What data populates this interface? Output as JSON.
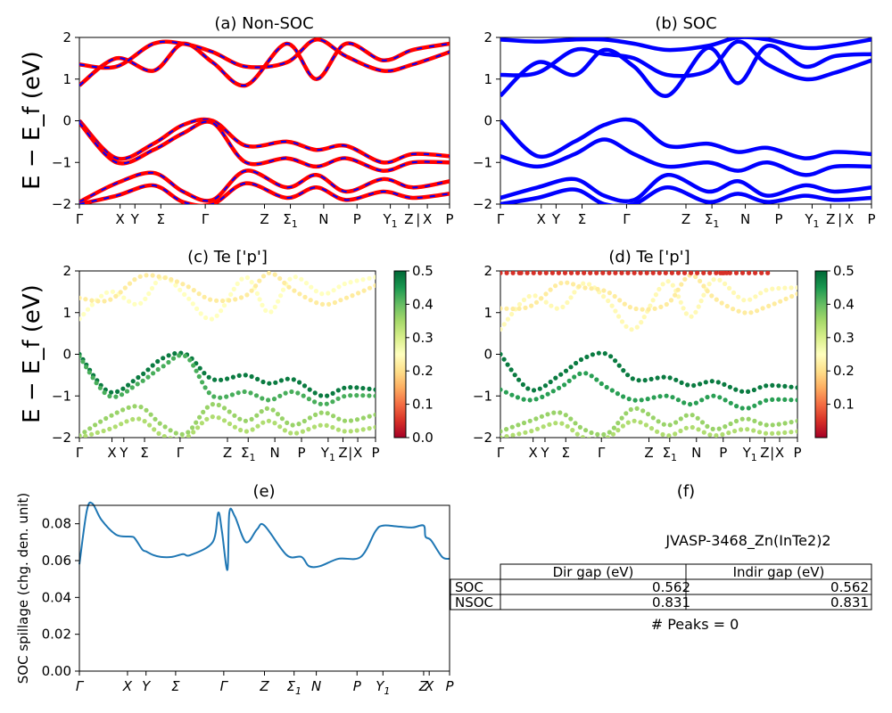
{
  "figure": {
    "ylabel_bands": "E − E_f (eV)",
    "ylabel_spillage": "SOC spillage (chg. den. unit)"
  },
  "chart_data": [
    {
      "id": "a",
      "type": "line",
      "title": "(a) Non-SOC",
      "ylabel": "E − E_f (eV)",
      "ylim": [
        -2,
        2
      ],
      "yticks": [
        "2",
        "1",
        "0",
        "−1",
        "−2"
      ],
      "kpath_labels": [
        "Γ",
        "X",
        "Y",
        "Σ",
        "Γ",
        "Z",
        "Σ1",
        "N",
        "P",
        "Y1",
        "Z",
        "|",
        "X",
        "P"
      ],
      "colors": {
        "line": "#ff0000",
        "dash": "#0000ff"
      },
      "series": [
        {
          "x": [
            0,
            0.1,
            0.2,
            0.28,
            0.36,
            0.45,
            0.56,
            0.64,
            0.72,
            0.82,
            0.9,
            1.0
          ],
          "values": [
            0.85,
            1.5,
            1.2,
            1.85,
            1.4,
            0.85,
            1.85,
            1.0,
            1.85,
            1.45,
            1.7,
            1.85
          ]
        },
        {
          "x": [
            0,
            0.1,
            0.2,
            0.28,
            0.36,
            0.45,
            0.56,
            0.64,
            0.72,
            0.82,
            0.9,
            1.0
          ],
          "values": [
            1.35,
            1.3,
            1.85,
            1.85,
            1.65,
            1.3,
            1.4,
            1.95,
            1.55,
            1.2,
            1.35,
            1.65
          ]
        },
        {
          "x": [
            0,
            0.1,
            0.2,
            0.28,
            0.36,
            0.45,
            0.56,
            0.64,
            0.72,
            0.82,
            0.9,
            1.0
          ],
          "values": [
            0.0,
            -0.9,
            -0.55,
            -0.1,
            0.0,
            -0.6,
            -0.5,
            -0.7,
            -0.6,
            -1.0,
            -0.8,
            -0.85
          ]
        },
        {
          "x": [
            0,
            0.1,
            0.2,
            0.28,
            0.36,
            0.45,
            0.56,
            0.64,
            0.72,
            0.82,
            0.9,
            1.0
          ],
          "values": [
            -0.05,
            -1.0,
            -0.7,
            -0.3,
            -0.05,
            -1.0,
            -0.9,
            -1.1,
            -0.9,
            -1.2,
            -1.0,
            -1.0
          ]
        },
        {
          "x": [
            0,
            0.1,
            0.2,
            0.28,
            0.36,
            0.45,
            0.56,
            0.64,
            0.72,
            0.82,
            0.9,
            1.0
          ],
          "values": [
            -1.95,
            -1.5,
            -1.25,
            -1.7,
            -1.9,
            -1.2,
            -1.6,
            -1.3,
            -1.7,
            -1.4,
            -1.6,
            -1.45
          ]
        },
        {
          "x": [
            0,
            0.1,
            0.2,
            0.28,
            0.36,
            0.45,
            0.56,
            0.64,
            0.72,
            0.82,
            0.9,
            1.0
          ],
          "values": [
            -2.0,
            -1.8,
            -1.55,
            -1.95,
            -2.0,
            -1.5,
            -1.85,
            -1.6,
            -1.9,
            -1.7,
            -1.85,
            -1.75
          ]
        }
      ]
    },
    {
      "id": "b",
      "type": "line",
      "title": "(b) SOC",
      "ylim": [
        -2,
        2
      ],
      "yticks": [
        "2",
        "1",
        "0",
        "−1",
        "−2"
      ],
      "kpath_labels": [
        "Γ",
        "X",
        "Y",
        "Σ",
        "Γ",
        "Z",
        "Σ1",
        "N",
        "P",
        "Y1",
        "Z",
        "|",
        "X",
        "P"
      ],
      "colors": {
        "line": "#0000ff"
      },
      "series": [
        {
          "x": [
            0,
            0.1,
            0.2,
            0.28,
            0.36,
            0.45,
            0.56,
            0.64,
            0.72,
            0.82,
            0.9,
            1.0
          ],
          "values": [
            0.6,
            1.4,
            1.1,
            1.7,
            1.3,
            0.6,
            1.75,
            0.9,
            1.8,
            1.3,
            1.55,
            1.6
          ]
        },
        {
          "x": [
            0,
            0.1,
            0.2,
            0.28,
            0.36,
            0.45,
            0.56,
            0.64,
            0.72,
            0.82,
            0.9,
            1.0
          ],
          "values": [
            1.1,
            1.15,
            1.7,
            1.6,
            1.5,
            1.1,
            1.2,
            1.9,
            1.35,
            1.0,
            1.15,
            1.45
          ]
        },
        {
          "x": [
            0,
            0.1,
            0.2,
            0.28,
            0.36,
            0.45,
            0.56,
            0.64,
            0.72,
            0.82,
            0.9,
            1.0
          ],
          "values": [
            1.95,
            1.9,
            1.95,
            1.95,
            1.85,
            1.7,
            1.8,
            2.0,
            1.95,
            1.75,
            1.8,
            1.95
          ]
        },
        {
          "x": [
            0,
            0.1,
            0.2,
            0.28,
            0.36,
            0.45,
            0.56,
            0.64,
            0.72,
            0.82,
            0.9,
            1.0
          ],
          "values": [
            0.0,
            -0.85,
            -0.5,
            -0.1,
            0.0,
            -0.6,
            -0.55,
            -0.75,
            -0.65,
            -0.9,
            -0.75,
            -0.8
          ]
        },
        {
          "x": [
            0,
            0.1,
            0.2,
            0.28,
            0.36,
            0.45,
            0.56,
            0.64,
            0.72,
            0.82,
            0.9,
            1.0
          ],
          "values": [
            -0.85,
            -1.1,
            -0.8,
            -0.45,
            -0.8,
            -1.1,
            -1.0,
            -1.2,
            -1.0,
            -1.3,
            -1.1,
            -1.1
          ]
        },
        {
          "x": [
            0,
            0.1,
            0.2,
            0.28,
            0.36,
            0.45,
            0.56,
            0.64,
            0.72,
            0.82,
            0.9,
            1.0
          ],
          "values": [
            -1.85,
            -1.6,
            -1.4,
            -1.8,
            -1.9,
            -1.3,
            -1.7,
            -1.45,
            -1.8,
            -1.55,
            -1.7,
            -1.6
          ]
        },
        {
          "x": [
            0,
            0.1,
            0.2,
            0.28,
            0.36,
            0.45,
            0.56,
            0.64,
            0.72,
            0.82,
            0.9,
            1.0
          ],
          "values": [
            -2.0,
            -1.85,
            -1.65,
            -2.0,
            -2.0,
            -1.6,
            -1.95,
            -1.75,
            -1.95,
            -1.8,
            -1.9,
            -1.85
          ]
        }
      ]
    },
    {
      "id": "c",
      "type": "scatter",
      "title": "(c)  Te ['p']",
      "ylabel": "E − E_f (eV)",
      "ylim": [
        -2,
        2
      ],
      "yticks": [
        "2",
        "1",
        "0",
        "−1",
        "−2"
      ],
      "kpath_labels": [
        "Γ",
        "X",
        "Y",
        "Σ",
        "Γ",
        "Z",
        "Σ1",
        "N",
        "P",
        "Y1",
        "Z",
        "|",
        "X",
        "P"
      ],
      "colorbar": {
        "range": [
          0.0,
          0.5
        ],
        "ticks": [
          "0.5",
          "0.4",
          "0.3",
          "0.2",
          "0.1",
          "0.0"
        ],
        "colormap": "RdYlGn"
      },
      "series": [
        {
          "weight": 0.25,
          "x": [
            0,
            0.1,
            0.2,
            0.28,
            0.36,
            0.45,
            0.56,
            0.64,
            0.72,
            0.82,
            0.9,
            1.0
          ],
          "values": [
            0.85,
            1.5,
            1.2,
            1.85,
            1.4,
            0.85,
            1.85,
            1.0,
            1.85,
            1.45,
            1.7,
            1.85
          ]
        },
        {
          "weight": 0.22,
          "x": [
            0,
            0.1,
            0.2,
            0.28,
            0.36,
            0.45,
            0.56,
            0.64,
            0.72,
            0.82,
            0.9,
            1.0
          ],
          "values": [
            1.35,
            1.3,
            1.85,
            1.85,
            1.65,
            1.3,
            1.4,
            1.95,
            1.55,
            1.2,
            1.35,
            1.65
          ]
        },
        {
          "weight": 0.48,
          "x": [
            0,
            0.1,
            0.2,
            0.28,
            0.36,
            0.45,
            0.56,
            0.64,
            0.72,
            0.82,
            0.9,
            1.0
          ],
          "values": [
            0.0,
            -0.9,
            -0.55,
            -0.1,
            0.0,
            -0.6,
            -0.5,
            -0.7,
            -0.6,
            -1.0,
            -0.8,
            -0.85
          ]
        },
        {
          "weight": 0.42,
          "x": [
            0,
            0.1,
            0.2,
            0.28,
            0.36,
            0.45,
            0.56,
            0.64,
            0.72,
            0.82,
            0.9,
            1.0
          ],
          "values": [
            -0.05,
            -1.0,
            -0.7,
            -0.3,
            -0.05,
            -1.0,
            -0.9,
            -1.1,
            -0.9,
            -1.2,
            -1.0,
            -1.0
          ]
        },
        {
          "weight": 0.36,
          "x": [
            0,
            0.1,
            0.2,
            0.28,
            0.36,
            0.45,
            0.56,
            0.64,
            0.72,
            0.82,
            0.9,
            1.0
          ],
          "values": [
            -1.95,
            -1.5,
            -1.25,
            -1.7,
            -1.9,
            -1.2,
            -1.6,
            -1.3,
            -1.7,
            -1.4,
            -1.6,
            -1.45
          ]
        },
        {
          "weight": 0.34,
          "x": [
            0,
            0.1,
            0.2,
            0.28,
            0.36,
            0.45,
            0.56,
            0.64,
            0.72,
            0.82,
            0.9,
            1.0
          ],
          "values": [
            -2.0,
            -1.8,
            -1.55,
            -1.95,
            -2.0,
            -1.5,
            -1.85,
            -1.6,
            -1.9,
            -1.7,
            -1.85,
            -1.75
          ]
        }
      ]
    },
    {
      "id": "d",
      "type": "scatter",
      "title": "(d) Te ['p']",
      "ylim": [
        -2,
        2
      ],
      "yticks": [
        "2",
        "1",
        "0",
        "−1",
        "−2"
      ],
      "kpath_labels": [
        "Γ",
        "X",
        "Y",
        "Σ",
        "Γ",
        "Z",
        "Σ1",
        "N",
        "P",
        "Y1",
        "Z",
        "|",
        "X",
        "P"
      ],
      "colorbar": {
        "range": [
          0.0,
          0.5
        ],
        "ticks": [
          "0.5",
          "0.4",
          "0.3",
          "0.2",
          "0.1"
        ],
        "colormap": "RdYlGn"
      },
      "series": [
        {
          "weight": 0.24,
          "x": [
            0,
            0.1,
            0.2,
            0.28,
            0.36,
            0.45,
            0.56,
            0.64,
            0.72,
            0.82,
            0.9,
            1.0
          ],
          "values": [
            0.6,
            1.4,
            1.1,
            1.7,
            1.3,
            0.6,
            1.75,
            0.9,
            1.8,
            1.3,
            1.55,
            1.6
          ]
        },
        {
          "weight": 0.22,
          "x": [
            0,
            0.1,
            0.2,
            0.28,
            0.36,
            0.45,
            0.56,
            0.64,
            0.72,
            0.82,
            0.9,
            1.0
          ],
          "values": [
            1.1,
            1.15,
            1.7,
            1.6,
            1.5,
            1.1,
            1.2,
            1.9,
            1.35,
            1.0,
            1.15,
            1.45
          ]
        },
        {
          "weight": 0.05,
          "x": [
            0,
            0.06,
            0.12,
            0.72,
            0.74,
            0.88,
            0.9
          ],
          "values": [
            1.95,
            1.95,
            1.95,
            1.95,
            1.95,
            1.95,
            1.95
          ]
        },
        {
          "weight": 0.48,
          "x": [
            0,
            0.1,
            0.2,
            0.28,
            0.36,
            0.45,
            0.56,
            0.64,
            0.72,
            0.82,
            0.9,
            1.0
          ],
          "values": [
            0.0,
            -0.85,
            -0.5,
            -0.1,
            0.0,
            -0.6,
            -0.55,
            -0.75,
            -0.65,
            -0.9,
            -0.75,
            -0.8
          ]
        },
        {
          "weight": 0.44,
          "x": [
            0,
            0.1,
            0.2,
            0.28,
            0.36,
            0.45,
            0.56,
            0.64,
            0.72,
            0.82,
            0.9,
            1.0
          ],
          "values": [
            -0.85,
            -1.1,
            -0.8,
            -0.45,
            -0.8,
            -1.1,
            -1.0,
            -1.2,
            -1.0,
            -1.3,
            -1.1,
            -1.1
          ]
        },
        {
          "weight": 0.36,
          "x": [
            0,
            0.1,
            0.2,
            0.28,
            0.36,
            0.45,
            0.56,
            0.64,
            0.72,
            0.82,
            0.9,
            1.0
          ],
          "values": [
            -1.85,
            -1.6,
            -1.4,
            -1.8,
            -1.9,
            -1.3,
            -1.7,
            -1.45,
            -1.8,
            -1.55,
            -1.7,
            -1.6
          ]
        },
        {
          "weight": 0.34,
          "x": [
            0,
            0.1,
            0.2,
            0.28,
            0.36,
            0.45,
            0.56,
            0.64,
            0.72,
            0.82,
            0.9,
            1.0
          ],
          "values": [
            -2.0,
            -1.85,
            -1.65,
            -2.0,
            -2.0,
            -1.6,
            -1.95,
            -1.75,
            -1.95,
            -1.8,
            -1.9,
            -1.85
          ]
        }
      ]
    },
    {
      "id": "e",
      "type": "line",
      "title": "(e)",
      "ylabel": "SOC spillage (chg. den. unit)",
      "ylim": [
        0.0,
        0.09
      ],
      "yticks": [
        0.0,
        0.02,
        0.04,
        0.06,
        0.08
      ],
      "ytick_labels": [
        "0.00",
        "0.02",
        "0.04",
        "0.06",
        "0.08"
      ],
      "kpath_labels": [
        "Γ",
        "X",
        "Y",
        "Σ",
        "Γ",
        "Z",
        "Σ1",
        "N",
        "P",
        "Y1",
        "Z",
        "X",
        "P"
      ],
      "colors": {
        "line": "#1f77b4"
      },
      "x": [
        0,
        0.02,
        0.035,
        0.06,
        0.1,
        0.14,
        0.15,
        0.17,
        0.18,
        0.2,
        0.22,
        0.25,
        0.28,
        0.3,
        0.36,
        0.375,
        0.385,
        0.4,
        0.405,
        0.42,
        0.45,
        0.48,
        0.5,
        0.56,
        0.6,
        0.62,
        0.65,
        0.7,
        0.76,
        0.8,
        0.82,
        0.86,
        0.9,
        0.93,
        0.935,
        0.95,
        0.98,
        1.0
      ],
      "values": [
        0.058,
        0.087,
        0.091,
        0.082,
        0.074,
        0.073,
        0.072,
        0.066,
        0.065,
        0.063,
        0.062,
        0.062,
        0.0635,
        0.063,
        0.07,
        0.086,
        0.076,
        0.055,
        0.086,
        0.084,
        0.07,
        0.077,
        0.079,
        0.063,
        0.062,
        0.057,
        0.057,
        0.061,
        0.062,
        0.076,
        0.079,
        0.0785,
        0.078,
        0.079,
        0.073,
        0.071,
        0.062,
        0.061
      ]
    },
    {
      "id": "f",
      "type": "table",
      "title": "(f)",
      "material": "JVASP-3468_Zn(InTe2)2",
      "columns": [
        "Dir gap (eV)",
        "Indir gap (eV)"
      ],
      "rows": [
        {
          "label": "SOC",
          "values": [
            "0.562",
            "0.562"
          ]
        },
        {
          "label": "NSOC",
          "values": [
            "0.831",
            "0.831"
          ]
        }
      ],
      "peaks": "# Peaks = 0"
    }
  ]
}
